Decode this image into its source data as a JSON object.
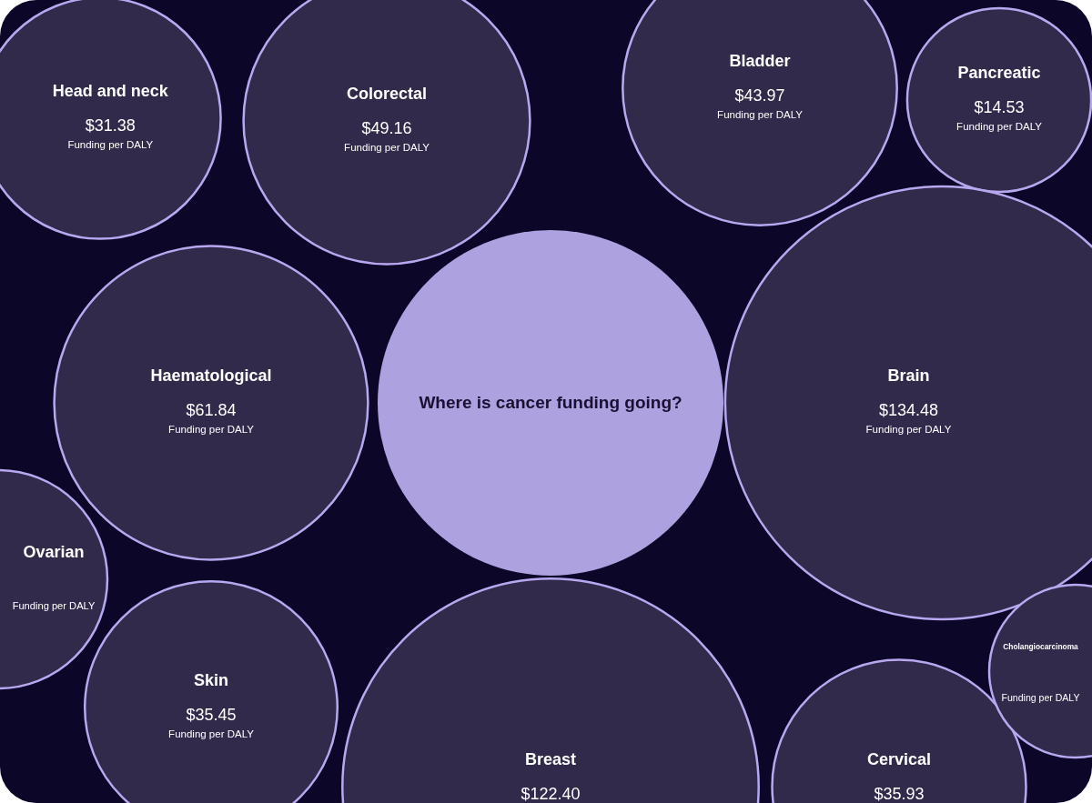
{
  "chart_data": {
    "type": "other",
    "title": "Where is cancer funding going?",
    "ylabel": "Funding per DALY",
    "categories": [
      "Head and neck",
      "Colorectal",
      "Bladder",
      "Pancreatic",
      "Haematological",
      "Brain",
      "Ovarian",
      "Skin",
      "Breast",
      "Cervical",
      "Cholangiocarcinoma"
    ],
    "values": [
      31.38,
      49.16,
      43.97,
      14.53,
      61.84,
      134.48,
      null,
      35.45,
      122.4,
      35.93,
      null
    ],
    "value_labels": [
      "$31.38",
      "$49.16",
      "$43.97",
      "$14.53",
      "$61.84",
      "$134.48",
      null,
      "$35.45",
      "$122.40",
      "$35.93",
      null
    ],
    "color": "#312a4a"
  }
}
